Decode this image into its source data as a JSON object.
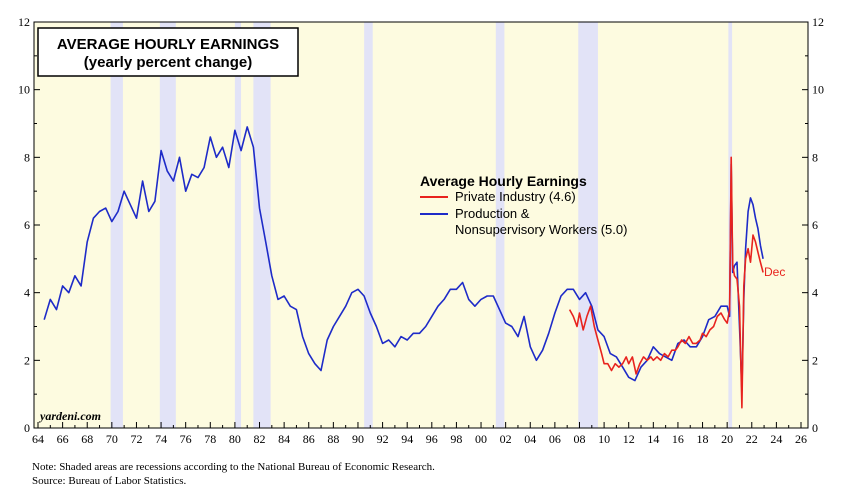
{
  "chart_data": {
    "type": "line",
    "title": "AVERAGE HOURLY EARNINGS",
    "subtitle": "(yearly percent change)",
    "legend_title": "Average Hourly Earnings",
    "legend_position": "center-right",
    "watermark": "yardeni.com",
    "end_label": "Dec",
    "xlim": [
      1964,
      2026
    ],
    "ylim": [
      0,
      12
    ],
    "y_ticks": [
      0,
      2,
      4,
      6,
      8,
      10,
      12
    ],
    "x_tick_labels": [
      "64",
      "66",
      "68",
      "70",
      "72",
      "74",
      "76",
      "78",
      "80",
      "82",
      "84",
      "86",
      "88",
      "90",
      "92",
      "94",
      "96",
      "98",
      "00",
      "02",
      "04",
      "06",
      "08",
      "10",
      "12",
      "14",
      "16",
      "18",
      "20",
      "22",
      "24",
      "26"
    ],
    "recessions": [
      [
        1969.9,
        1970.9
      ],
      [
        1973.9,
        1975.2
      ],
      [
        1980.0,
        1980.5
      ],
      [
        1981.5,
        1982.9
      ],
      [
        1990.5,
        1991.2
      ],
      [
        2001.2,
        2001.9
      ],
      [
        2007.9,
        2009.5
      ],
      [
        2020.1,
        2020.4
      ]
    ],
    "series": [
      {
        "name": "Private Industry (4.6)",
        "color": "#e8231e",
        "x": [
          2007.2,
          2007.5,
          2007.8,
          2008.0,
          2008.3,
          2008.6,
          2008.9,
          2009.2,
          2009.5,
          2009.8,
          2010.0,
          2010.3,
          2010.6,
          2010.9,
          2011.2,
          2011.5,
          2011.8,
          2012.0,
          2012.3,
          2012.6,
          2012.9,
          2013.2,
          2013.5,
          2013.8,
          2014.0,
          2014.3,
          2014.6,
          2014.9,
          2015.2,
          2015.5,
          2015.8,
          2016.0,
          2016.3,
          2016.6,
          2016.9,
          2017.2,
          2017.5,
          2017.8,
          2018.0,
          2018.3,
          2018.6,
          2018.9,
          2019.2,
          2019.5,
          2019.8,
          2020.0,
          2020.2,
          2020.33,
          2020.45,
          2020.6,
          2020.8,
          2021.0,
          2021.2,
          2021.35,
          2021.5,
          2021.7,
          2021.9,
          2022.1,
          2022.3,
          2022.5,
          2022.7,
          2022.92
        ],
        "values": [
          3.5,
          3.3,
          3.0,
          3.4,
          2.9,
          3.3,
          3.6,
          3.0,
          2.6,
          2.2,
          1.9,
          1.9,
          1.7,
          1.9,
          1.8,
          1.9,
          2.1,
          1.9,
          2.1,
          1.6,
          1.9,
          2.1,
          2.0,
          2.1,
          2.0,
          2.1,
          2.0,
          2.2,
          2.1,
          2.3,
          2.3,
          2.4,
          2.6,
          2.5,
          2.7,
          2.5,
          2.5,
          2.6,
          2.8,
          2.7,
          2.9,
          3.0,
          3.3,
          3.4,
          3.2,
          3.1,
          3.5,
          8.0,
          4.8,
          4.5,
          4.4,
          3.6,
          0.6,
          4.2,
          5.0,
          5.3,
          4.9,
          5.7,
          5.5,
          5.2,
          4.9,
          4.6
        ]
      },
      {
        "name": "Production & Nonsupervisory Workers (5.0)",
        "color": "#1e2bc8",
        "x": [
          1964.5,
          1965.0,
          1965.5,
          1966.0,
          1966.5,
          1967.0,
          1967.5,
          1968.0,
          1968.5,
          1969.0,
          1969.5,
          1970.0,
          1970.5,
          1971.0,
          1971.5,
          1972.0,
          1972.5,
          1973.0,
          1973.5,
          1974.0,
          1974.5,
          1975.0,
          1975.5,
          1976.0,
          1976.5,
          1977.0,
          1977.5,
          1978.0,
          1978.5,
          1979.0,
          1979.5,
          1980.0,
          1980.5,
          1981.0,
          1981.5,
          1982.0,
          1982.5,
          1983.0,
          1983.5,
          1984.0,
          1984.5,
          1985.0,
          1985.5,
          1986.0,
          1986.5,
          1987.0,
          1987.5,
          1988.0,
          1988.5,
          1989.0,
          1989.5,
          1990.0,
          1990.5,
          1991.0,
          1991.5,
          1992.0,
          1992.5,
          1993.0,
          1993.5,
          1994.0,
          1994.5,
          1995.0,
          1995.5,
          1996.0,
          1996.5,
          1997.0,
          1997.5,
          1998.0,
          1998.5,
          1999.0,
          1999.5,
          2000.0,
          2000.5,
          2001.0,
          2001.5,
          2002.0,
          2002.5,
          2003.0,
          2003.5,
          2004.0,
          2004.5,
          2005.0,
          2005.5,
          2006.0,
          2006.5,
          2007.0,
          2007.5,
          2008.0,
          2008.5,
          2009.0,
          2009.5,
          2010.0,
          2010.5,
          2011.0,
          2011.5,
          2012.0,
          2012.5,
          2013.0,
          2013.5,
          2014.0,
          2014.5,
          2015.0,
          2015.5,
          2016.0,
          2016.5,
          2017.0,
          2017.5,
          2018.0,
          2018.5,
          2019.0,
          2019.5,
          2020.0,
          2020.2,
          2020.33,
          2020.45,
          2020.6,
          2020.8,
          2021.0,
          2021.2,
          2021.35,
          2021.5,
          2021.7,
          2021.9,
          2022.1,
          2022.3,
          2022.5,
          2022.7,
          2022.92
        ],
        "values": [
          3.2,
          3.8,
          3.5,
          4.2,
          4.0,
          4.5,
          4.2,
          5.5,
          6.2,
          6.4,
          6.5,
          6.1,
          6.4,
          7.0,
          6.6,
          6.2,
          7.3,
          6.4,
          6.7,
          8.2,
          7.6,
          7.3,
          8.0,
          7.0,
          7.5,
          7.4,
          7.7,
          8.6,
          8.0,
          8.3,
          7.7,
          8.8,
          8.2,
          8.9,
          8.3,
          6.5,
          5.5,
          4.5,
          3.8,
          3.9,
          3.6,
          3.5,
          2.7,
          2.2,
          1.9,
          1.7,
          2.6,
          3.0,
          3.3,
          3.6,
          4.0,
          4.1,
          3.9,
          3.4,
          3.0,
          2.5,
          2.6,
          2.4,
          2.7,
          2.6,
          2.8,
          2.8,
          3.0,
          3.3,
          3.6,
          3.8,
          4.1,
          4.1,
          4.3,
          3.8,
          3.6,
          3.8,
          3.9,
          3.9,
          3.5,
          3.1,
          3.0,
          2.7,
          3.3,
          2.4,
          2.0,
          2.3,
          2.8,
          3.4,
          3.9,
          4.1,
          4.1,
          3.8,
          4.0,
          3.6,
          2.9,
          2.7,
          2.2,
          2.1,
          1.8,
          1.5,
          1.4,
          1.8,
          2.0,
          2.4,
          2.2,
          2.1,
          2.0,
          2.5,
          2.6,
          2.4,
          2.4,
          2.7,
          3.2,
          3.3,
          3.6,
          3.6,
          3.3,
          7.8,
          4.6,
          4.8,
          4.9,
          3.0,
          1.1,
          3.8,
          5.3,
          6.4,
          6.8,
          6.6,
          6.2,
          5.9,
          5.4,
          5.0
        ]
      }
    ]
  },
  "notes": {
    "line1": "Note: Shaded areas are recessions according to the National Bureau of Economic Research.",
    "line2": "Source: Bureau of Labor Statistics."
  }
}
